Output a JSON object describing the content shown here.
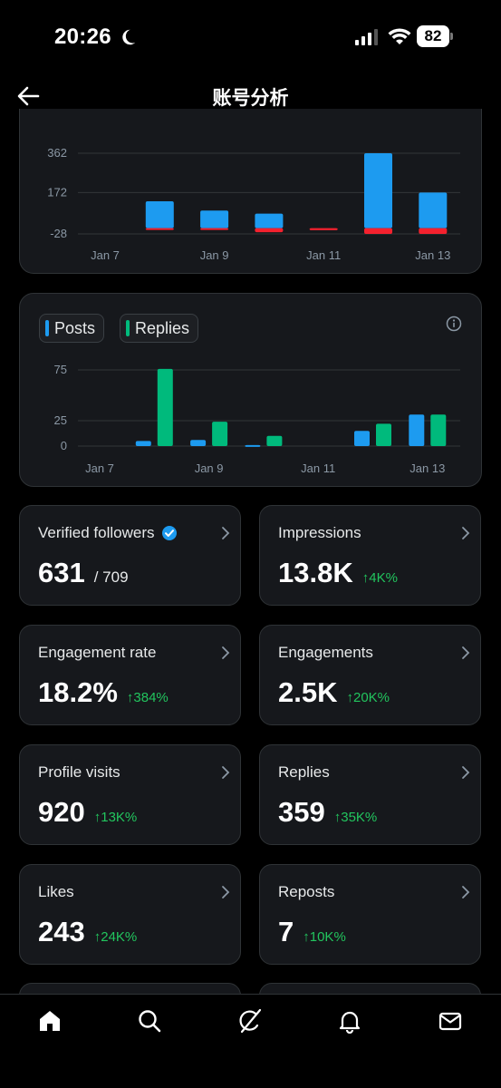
{
  "status": {
    "time": "20:26",
    "battery": "82"
  },
  "header": {
    "title": "账号分析"
  },
  "chart_data": [
    {
      "type": "bar",
      "categories": [
        "Jan 7",
        "Jan 8",
        "Jan 9",
        "Jan 10",
        "Jan 11",
        "Jan 12",
        "Jan 13"
      ],
      "x_tick_labels": [
        "Jan 7",
        "Jan 9",
        "Jan 11",
        "Jan 13"
      ],
      "y_tick_labels": [
        "362",
        "172",
        "-28"
      ],
      "ylim": [
        -28,
        362
      ],
      "series": [
        {
          "color": "#1d9bf0",
          "values": [
            0,
            130,
            85,
            70,
            0,
            362,
            172
          ]
        },
        {
          "color": "#f4212e",
          "values": [
            0,
            -5,
            -8,
            -20,
            -10,
            -28,
            -28
          ]
        }
      ],
      "grid": true
    },
    {
      "type": "bar",
      "categories": [
        "Jan 7",
        "Jan 8",
        "Jan 9",
        "Jan 10",
        "Jan 11",
        "Jan 12",
        "Jan 13"
      ],
      "x_tick_labels": [
        "Jan 7",
        "Jan 9",
        "Jan 11",
        "Jan 13"
      ],
      "y_tick_labels": [
        "75",
        "25",
        "0"
      ],
      "ylim": [
        0,
        75
      ],
      "legend": "top-left",
      "series": [
        {
          "name": "Posts",
          "color": "#1d9bf0",
          "values": [
            0,
            5,
            6,
            1,
            0,
            15,
            31
          ]
        },
        {
          "name": "Replies",
          "color": "#00ba7c",
          "values": [
            0,
            76,
            24,
            10,
            0,
            22,
            31
          ]
        }
      ],
      "grid": true
    }
  ],
  "stats": [
    {
      "label": "Verified followers",
      "value": "631",
      "sub": "/ 709",
      "change": "",
      "verified": true
    },
    {
      "label": "Impressions",
      "value": "13.8K",
      "sub": "",
      "change": "4K%"
    },
    {
      "label": "Engagement rate",
      "value": "18.2%",
      "sub": "",
      "change": "384%"
    },
    {
      "label": "Engagements",
      "value": "2.5K",
      "sub": "",
      "change": "20K%"
    },
    {
      "label": "Profile visits",
      "value": "920",
      "sub": "",
      "change": "13K%"
    },
    {
      "label": "Replies",
      "value": "359",
      "sub": "",
      "change": "35K%"
    },
    {
      "label": "Likes",
      "value": "243",
      "sub": "",
      "change": "24K%"
    },
    {
      "label": "Reposts",
      "value": "7",
      "sub": "",
      "change": "10K%"
    }
  ],
  "icons": {
    "back": "arrow-left-icon",
    "info": "info-icon",
    "tabs": [
      "home-icon",
      "search-icon",
      "grok-icon",
      "notifications-icon",
      "messages-icon"
    ]
  },
  "colors": {
    "up": "#22c55e",
    "posts": "#1d9bf0",
    "replies": "#00ba7c",
    "negative": "#f4212e"
  }
}
